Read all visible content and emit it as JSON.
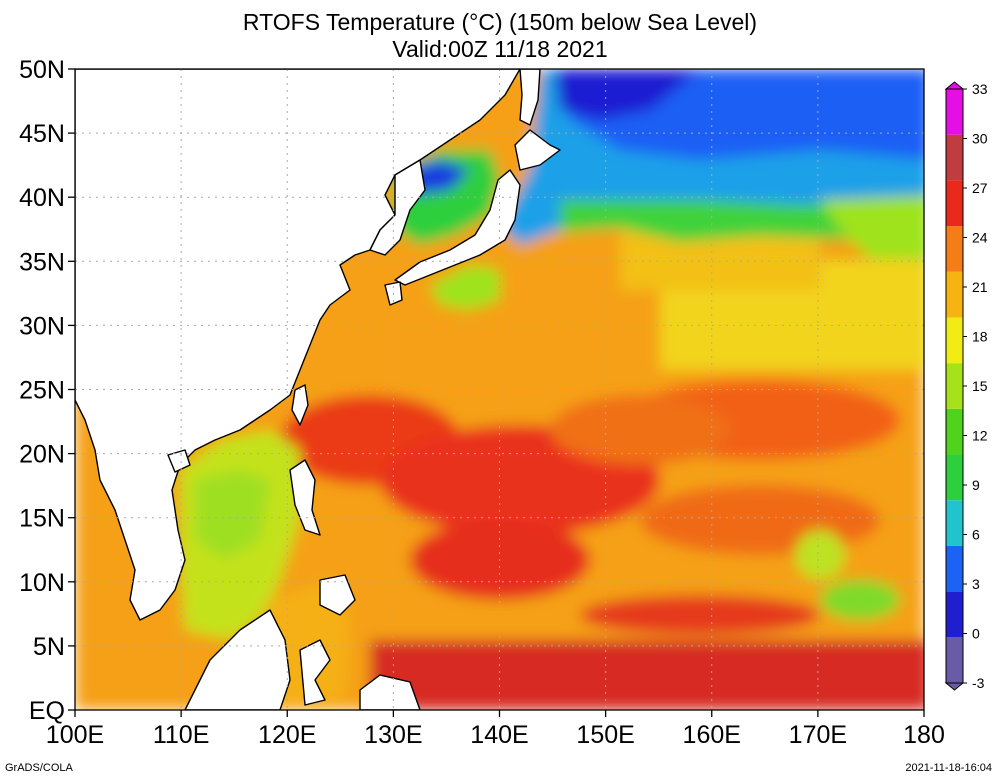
{
  "title": {
    "line1": "RTOFS Temperature (°C) (150m below Sea Level)",
    "line2": "Valid:00Z 11/18 2021"
  },
  "map": {
    "lon_range": [
      100,
      180
    ],
    "lat_range": [
      0,
      50
    ],
    "lon_ticks": [
      "100E",
      "110E",
      "120E",
      "130E",
      "140E",
      "150E",
      "160E",
      "170E",
      "180"
    ],
    "lat_ticks": [
      "EQ",
      "5N",
      "10N",
      "15N",
      "20N",
      "25N",
      "30N",
      "35N",
      "40N",
      "45N",
      "50N"
    ],
    "grid": true,
    "land_color": "#ffffff",
    "coast_color": "#000000"
  },
  "colorbar": {
    "labels": [
      "-3",
      "0",
      "3",
      "6",
      "9",
      "12",
      "15",
      "18",
      "21",
      "24",
      "27",
      "30",
      "33"
    ],
    "colors": [
      "#6a5ba8",
      "#1f1fd0",
      "#1b63f5",
      "#21c3cd",
      "#2ecf3e",
      "#4fd31d",
      "#a6e21a",
      "#f0ec14",
      "#f7b312",
      "#f57d16",
      "#e9291b",
      "#c03c3f",
      "#e60ee6"
    ]
  },
  "footer": {
    "left": "GrADS/COLA",
    "right": "2021-11-18-16:04"
  }
}
